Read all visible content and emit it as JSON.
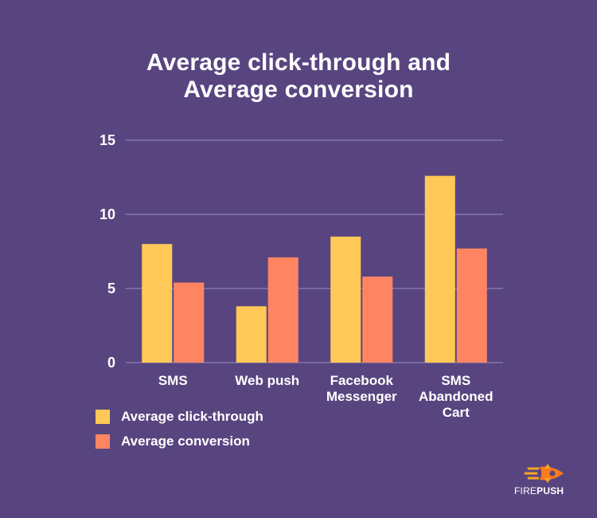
{
  "title_lines": [
    "Average click-through and",
    "Average conversion"
  ],
  "chart_data": {
    "type": "bar",
    "title": "Average click-through and Average conversion",
    "categories": [
      [
        "SMS"
      ],
      [
        "Web push"
      ],
      [
        "Facebook",
        "Messenger"
      ],
      [
        "SMS",
        "Abandoned",
        "Cart"
      ]
    ],
    "series": [
      {
        "name": "Average click-through",
        "color": "#FFC857",
        "values": [
          8.0,
          3.8,
          8.5,
          12.6
        ]
      },
      {
        "name": "Average conversion",
        "color": "#FF8562",
        "values": [
          5.4,
          7.1,
          5.8,
          7.7
        ]
      }
    ],
    "y_ticks": [
      "0",
      "5",
      "10",
      "15"
    ],
    "ylim": [
      0,
      15
    ],
    "grid": true,
    "legend_position": "bottom-left"
  },
  "brand": {
    "logo_icon": "rocket-icon",
    "name_part1": "FIRE",
    "name_part2": "PUSH"
  }
}
